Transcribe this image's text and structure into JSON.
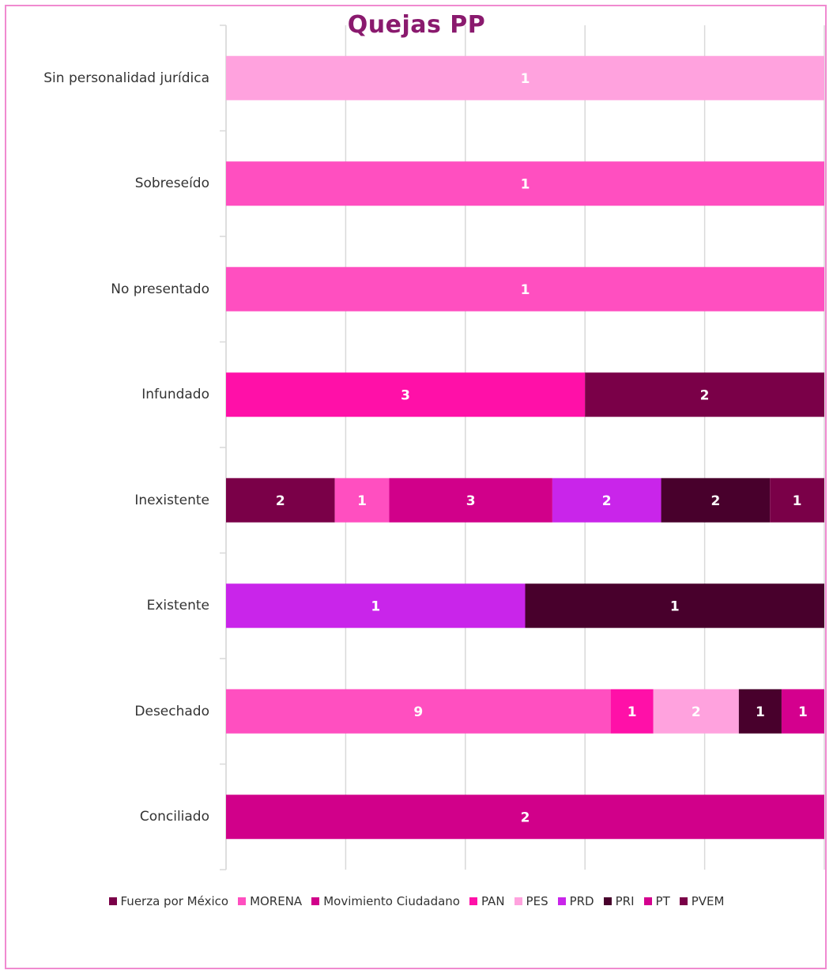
{
  "chart_data": {
    "type": "bar",
    "orientation": "horizontal",
    "stacked": "percent",
    "title": "Quejas  PP",
    "categories": [
      "Sin personalidad jurídica",
      "Sobreseído",
      "No presentado",
      "Infundado",
      "Inexistente",
      "Existente",
      "Desechado",
      "Conciliado"
    ],
    "series": [
      {
        "name": "Fuerza por México",
        "color": "#7a0048",
        "values": [
          null,
          null,
          null,
          null,
          2,
          null,
          null,
          null
        ]
      },
      {
        "name": "MORENA",
        "color": "#ff4fc0",
        "values": [
          null,
          1,
          1,
          null,
          1,
          null,
          9,
          null
        ]
      },
      {
        "name": "Movimiento Ciudadano",
        "color": "#d1008a",
        "values": [
          null,
          null,
          null,
          null,
          3,
          null,
          null,
          2
        ]
      },
      {
        "name": "PAN",
        "color": "#ff10a8",
        "values": [
          null,
          null,
          null,
          3,
          null,
          null,
          1,
          null
        ]
      },
      {
        "name": "PES",
        "color": "#ffa2de",
        "values": [
          1,
          null,
          null,
          null,
          null,
          null,
          2,
          null
        ]
      },
      {
        "name": "PRD",
        "color": "#c925ea",
        "values": [
          null,
          null,
          null,
          null,
          2,
          1,
          null,
          null
        ]
      },
      {
        "name": "PRI",
        "color": "#48002c",
        "values": [
          null,
          null,
          null,
          null,
          2,
          1,
          1,
          null
        ]
      },
      {
        "name": "PT",
        "color": "#d4008e",
        "values": [
          null,
          null,
          null,
          null,
          null,
          null,
          1,
          null
        ]
      },
      {
        "name": "PVEM",
        "color": "#7a0048",
        "values": [
          null,
          null,
          null,
          2,
          1,
          null,
          null,
          null
        ]
      }
    ],
    "legend": "bottom",
    "grid": true,
    "data_labels": true
  }
}
